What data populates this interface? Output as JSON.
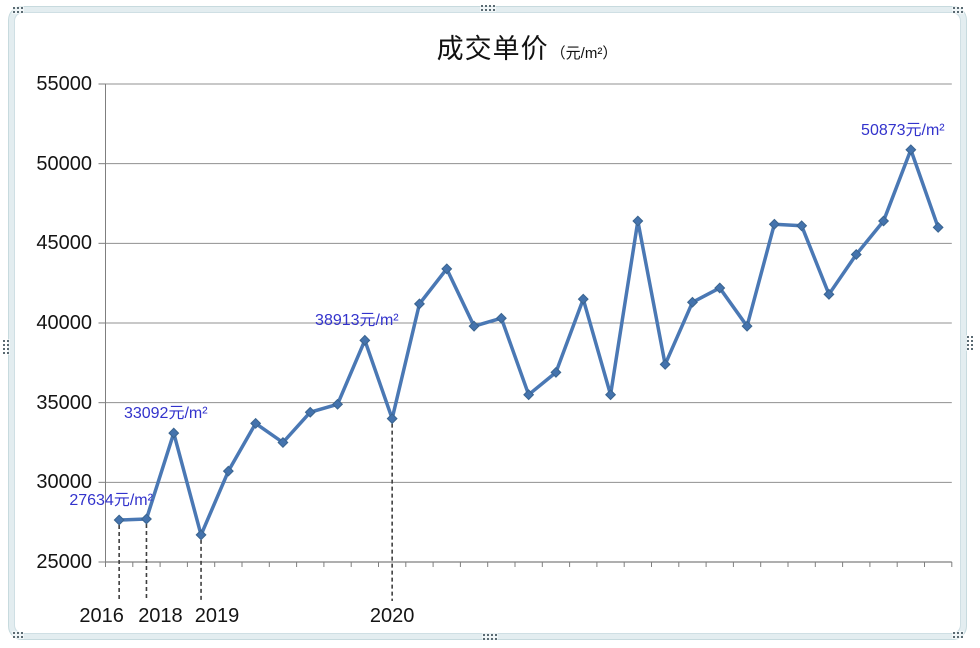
{
  "title": {
    "text": "成交单价",
    "unit": "（元/m²）"
  },
  "y_axis": {
    "min": 25000,
    "max": 55000,
    "step": 5000,
    "tick_labels": [
      "25000",
      "30000",
      "35000",
      "40000",
      "45000",
      "50000",
      "55000"
    ]
  },
  "x_axis": {
    "labels": [
      {
        "text": "2016",
        "point_index": 0
      },
      {
        "text": "2018",
        "point_index": 1
      },
      {
        "text": "2019",
        "point_index": 3
      },
      {
        "text": "2020",
        "point_index": 10
      }
    ]
  },
  "chart_data": {
    "type": "line",
    "title": "成交单价（元/m²）",
    "ylabel": "元/m²",
    "ylim": [
      25000,
      55000
    ],
    "grid": "horizontal",
    "legend": "none",
    "marker": "diamond",
    "series": [
      {
        "name": "成交单价",
        "values": [
          27634,
          27700,
          33092,
          26700,
          30700,
          33700,
          32500,
          34400,
          34900,
          38913,
          34000,
          41200,
          43400,
          39800,
          40300,
          35500,
          36900,
          41500,
          35500,
          46400,
          37400,
          41300,
          42200,
          39800,
          46200,
          46100,
          41800,
          44300,
          46400,
          50873,
          46000
        ]
      }
    ],
    "annotations": [
      {
        "point_index": 0,
        "text": "27634元/m²"
      },
      {
        "point_index": 2,
        "text": "33092元/m²"
      },
      {
        "point_index": 9,
        "text": "38913元/m²"
      },
      {
        "point_index": 29,
        "text": "50873元/m²"
      }
    ],
    "leader_line_point_indices": [
      0,
      1,
      3,
      10
    ]
  },
  "colors": {
    "line": "#4a78b4",
    "marker_fill": "#4473ad",
    "marker_stroke": "#3a648f",
    "data_label": "#3333cc",
    "gridline": "#909090",
    "axis": "#7f7f7f",
    "leader_line": "#3f3f3f",
    "frame_band": "#e3edf0",
    "frame_border": "#c7dade",
    "handle_dot": "#5a6a72",
    "background": "#ffffff"
  }
}
